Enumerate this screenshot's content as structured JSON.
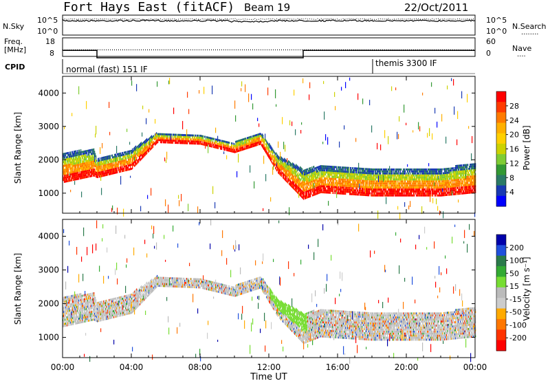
{
  "header": {
    "radar": "Fort Hays East (fitACF)",
    "beam": "Beam 19",
    "date": "22/Oct/2011"
  },
  "panels": {
    "noise": {
      "left_label": "N.Sky",
      "right_label": "N.Search",
      "right_legend": "........",
      "ticks": [
        "10^5",
        "10^0"
      ]
    },
    "freq": {
      "left_label": "Freq.",
      "left_unit": "[MHz]",
      "right_label": "Nave",
      "right_legend": "....",
      "left_ticks": [
        "18",
        "8"
      ],
      "right_ticks": [
        "60",
        "0"
      ],
      "freq_steps": [
        {
          "t": 0,
          "value": 12
        },
        {
          "t": 2,
          "value": 8
        },
        {
          "t": 14,
          "value": 12
        },
        {
          "t": 24,
          "value": 12
        }
      ],
      "nave_level": 30
    },
    "cpid": {
      "label": "CPID",
      "segments": [
        {
          "label": "normal (fast) 151 IF",
          "start": "00:00"
        },
        {
          "label": "themis 3300 IF",
          "start": "18:00"
        }
      ]
    }
  },
  "axes": {
    "xlabel": "Time UT",
    "xticks": [
      "00:00",
      "04:00",
      "08:00",
      "12:00",
      "16:00",
      "20:00",
      "00:00"
    ],
    "xrange_hours": [
      0,
      24
    ]
  },
  "chart_data": [
    {
      "type": "heatmap",
      "name": "power",
      "ylabel": "Slant Range [km]",
      "ylim": [
        400,
        4500
      ],
      "yticks": [
        "1000",
        "2000",
        "3000",
        "4000"
      ],
      "ytick_values": [
        1000,
        2000,
        3000,
        4000
      ],
      "colorbar": {
        "title": "Power [dB]",
        "labels": [
          "28",
          "24",
          "20",
          "16",
          "12",
          "8",
          "4"
        ],
        "colors": [
          "#ff0000",
          "#ff3b00",
          "#ff7b00",
          "#ffb000",
          "#ffd000",
          "#ccd200",
          "#7fcc33",
          "#339933",
          "#2b7a66",
          "#1a3ab3",
          "#0000ff"
        ]
      },
      "echo_band": {
        "lower_edge_km": [
          [
            0,
            1300
          ],
          [
            1.8,
            1500
          ],
          [
            2,
            1450
          ],
          [
            4,
            1700
          ],
          [
            5.5,
            2500
          ],
          [
            8,
            2450
          ],
          [
            10,
            2200
          ],
          [
            11.5,
            2450
          ],
          [
            12.5,
            1600
          ],
          [
            14,
            800
          ],
          [
            15,
            1000
          ],
          [
            18,
            900
          ],
          [
            22,
            900
          ],
          [
            24,
            1000
          ]
        ],
        "upper_edge_km": [
          [
            0,
            2200
          ],
          [
            1.8,
            2300
          ],
          [
            2,
            2000
          ],
          [
            4,
            2300
          ],
          [
            5.5,
            2800
          ],
          [
            8,
            2700
          ],
          [
            10,
            2500
          ],
          [
            11.5,
            2800
          ],
          [
            12.5,
            2100
          ],
          [
            14,
            1700
          ],
          [
            15,
            1800
          ],
          [
            18,
            1700
          ],
          [
            22,
            1700
          ],
          [
            24,
            1900
          ]
        ]
      }
    },
    {
      "type": "heatmap",
      "name": "velocity",
      "ylabel": "Slant Range [km]",
      "ylim": [
        400,
        4500
      ],
      "yticks": [
        "1000",
        "2000",
        "3000",
        "4000"
      ],
      "ytick_values": [
        1000,
        2000,
        3000,
        4000
      ],
      "colorbar": {
        "title": "Velocity [m s⁻¹]",
        "labels": [
          "200",
          "100",
          "50",
          "15",
          "-15",
          "-50",
          "-100",
          "-200"
        ],
        "colors": [
          "#0000aa",
          "#2050dd",
          "#2a7a4a",
          "#33aa33",
          "#77dd33",
          "#bbbbbb",
          "#cccccc",
          "#ffaa00",
          "#ff7700",
          "#ff3300",
          "#ff0000"
        ]
      },
      "echo_band": {
        "lower_edge_km": [
          [
            0,
            1300
          ],
          [
            1.8,
            1500
          ],
          [
            2,
            1450
          ],
          [
            4,
            1700
          ],
          [
            5.5,
            2500
          ],
          [
            8,
            2450
          ],
          [
            10,
            2200
          ],
          [
            11.5,
            2450
          ],
          [
            12.5,
            1600
          ],
          [
            14,
            800
          ],
          [
            15,
            1000
          ],
          [
            18,
            900
          ],
          [
            22,
            900
          ],
          [
            24,
            1000
          ]
        ],
        "upper_edge_km": [
          [
            0,
            2200
          ],
          [
            1.8,
            2300
          ],
          [
            2,
            2000
          ],
          [
            4,
            2300
          ],
          [
            5.5,
            2800
          ],
          [
            8,
            2700
          ],
          [
            10,
            2500
          ],
          [
            11.5,
            2800
          ],
          [
            12.5,
            2100
          ],
          [
            14,
            1700
          ],
          [
            15,
            1800
          ],
          [
            18,
            1700
          ],
          [
            22,
            1700
          ],
          [
            24,
            1900
          ]
        ]
      }
    }
  ]
}
